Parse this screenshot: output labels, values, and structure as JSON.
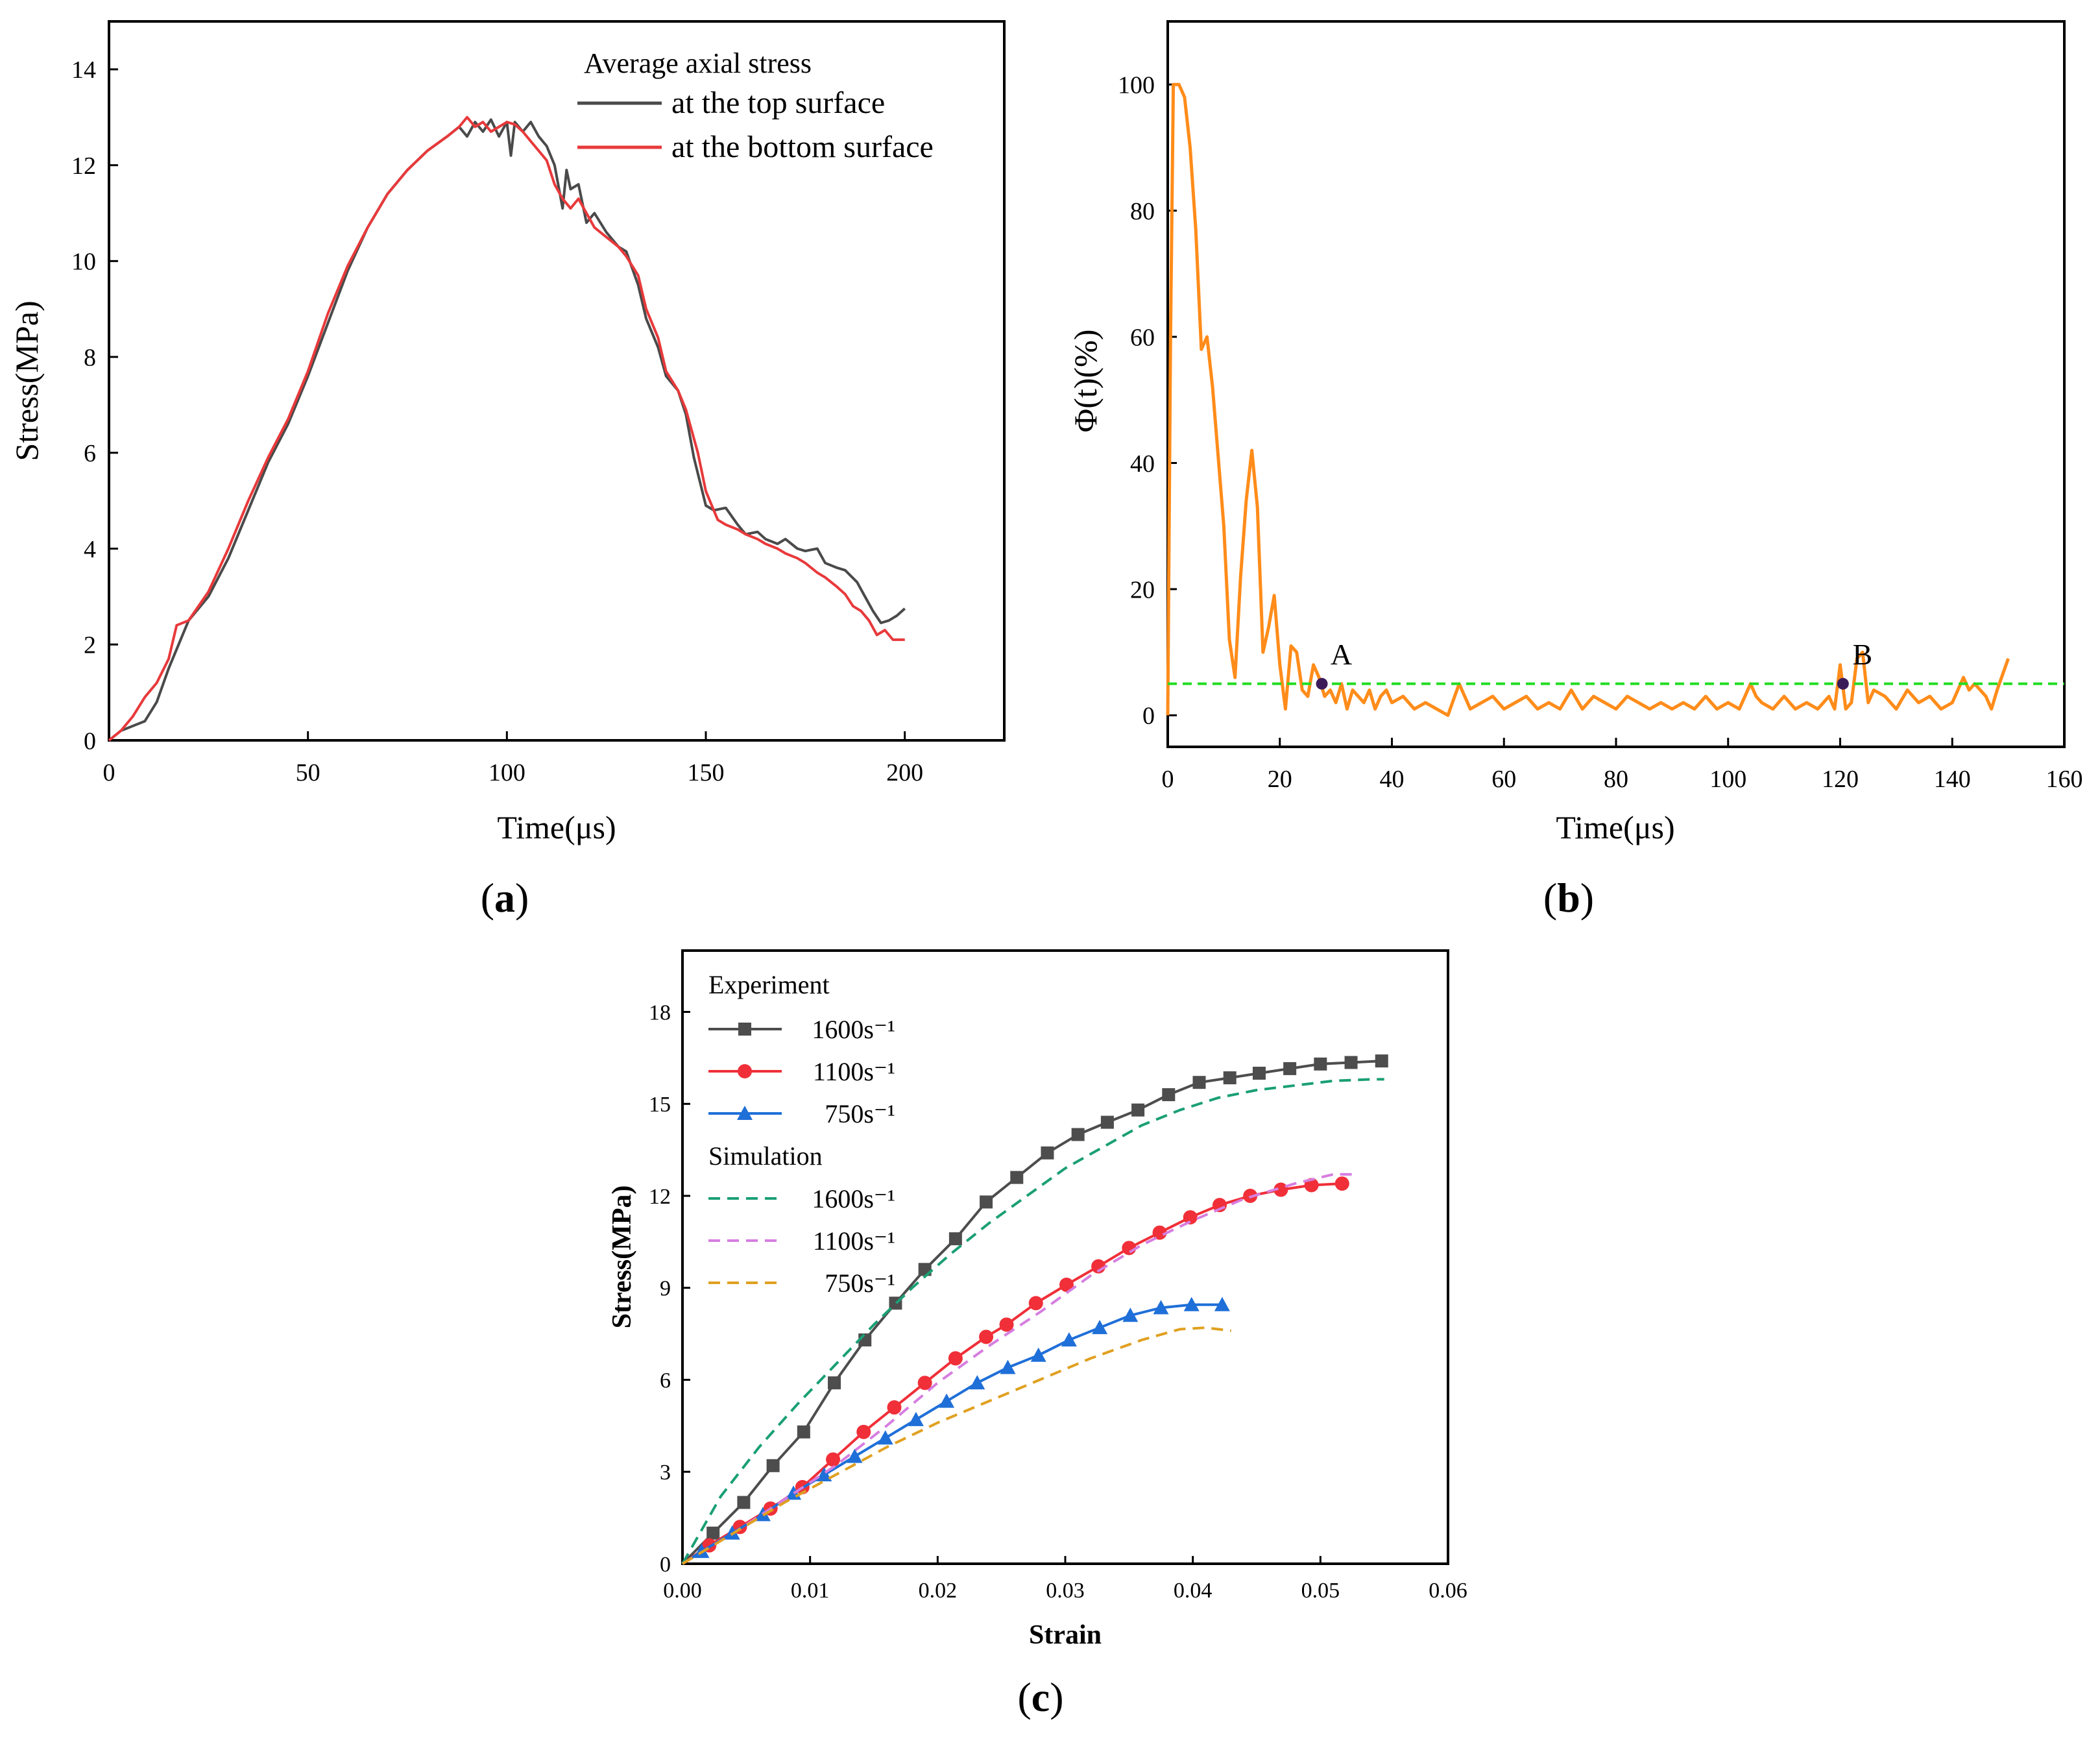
{
  "chart_data": [
    {
      "panel": "(a)",
      "panel_letter": "a",
      "type": "line",
      "title": "",
      "xlabel": "Time(μs)",
      "ylabel": "Stress(MPa)",
      "xlim": [
        0,
        225
      ],
      "ylim": [
        0,
        15
      ],
      "xticks": [
        0,
        50,
        100,
        150,
        200
      ],
      "yticks": [
        0,
        2,
        4,
        6,
        8,
        10,
        12,
        14
      ],
      "legend": {
        "title": "Average axial stress",
        "position": "top-right"
      },
      "series": [
        {
          "name": "at the top surface",
          "color": "#4a4a4a",
          "x": [
            0,
            3,
            6,
            9,
            12,
            15,
            20,
            25,
            30,
            35,
            40,
            45,
            50,
            55,
            60,
            65,
            70,
            75,
            80,
            85,
            88,
            90,
            92,
            94,
            96,
            98,
            100,
            101,
            102,
            104,
            106,
            108,
            110,
            112,
            114,
            115,
            116,
            118,
            120,
            122,
            125,
            128,
            130,
            133,
            135,
            138,
            140,
            143,
            145,
            147,
            150,
            152,
            155,
            158,
            160,
            163,
            165,
            168,
            170,
            173,
            175,
            178,
            180,
            183,
            185,
            188,
            190,
            192,
            194,
            196,
            198,
            200
          ],
          "y": [
            0,
            0.2,
            0.3,
            0.4,
            0.8,
            1.5,
            2.5,
            3.0,
            3.8,
            4.8,
            5.8,
            6.6,
            7.6,
            8.7,
            9.8,
            10.7,
            11.4,
            11.9,
            12.3,
            12.6,
            12.8,
            12.6,
            12.9,
            12.7,
            12.95,
            12.6,
            12.9,
            12.2,
            12.9,
            12.7,
            12.9,
            12.6,
            12.4,
            12.0,
            11.1,
            11.9,
            11.5,
            11.6,
            10.8,
            11.0,
            10.6,
            10.3,
            10.2,
            9.5,
            8.8,
            8.2,
            7.6,
            7.3,
            6.8,
            5.9,
            4.9,
            4.8,
            4.85,
            4.5,
            4.3,
            4.35,
            4.2,
            4.1,
            4.2,
            4.0,
            3.95,
            4.0,
            3.7,
            3.6,
            3.55,
            3.3,
            3.0,
            2.7,
            2.45,
            2.5,
            2.6,
            2.75
          ]
        },
        {
          "name": "at the bottom surface",
          "color": "#e8393b",
          "x": [
            0,
            3,
            6,
            9,
            12,
            15,
            17,
            20,
            25,
            30,
            35,
            40,
            45,
            50,
            55,
            60,
            65,
            70,
            75,
            80,
            85,
            88,
            90,
            92,
            94,
            96,
            98,
            100,
            102,
            104,
            106,
            108,
            110,
            112,
            114,
            116,
            118,
            120,
            122,
            125,
            128,
            130,
            133,
            135,
            138,
            140,
            143,
            145,
            148,
            150,
            153,
            155,
            158,
            160,
            163,
            165,
            168,
            170,
            173,
            175,
            178,
            180,
            183,
            185,
            187,
            189,
            191,
            193,
            195,
            197,
            200
          ],
          "y": [
            0,
            0.2,
            0.5,
            0.9,
            1.2,
            1.7,
            2.4,
            2.5,
            3.1,
            4.0,
            5.0,
            5.9,
            6.7,
            7.7,
            8.9,
            9.9,
            10.7,
            11.4,
            11.9,
            12.3,
            12.6,
            12.8,
            13.0,
            12.8,
            12.9,
            12.7,
            12.8,
            12.9,
            12.85,
            12.7,
            12.5,
            12.3,
            12.1,
            11.6,
            11.3,
            11.1,
            11.3,
            11.0,
            10.7,
            10.5,
            10.3,
            10.1,
            9.7,
            9.0,
            8.4,
            7.7,
            7.3,
            6.9,
            6.0,
            5.2,
            4.6,
            4.5,
            4.4,
            4.3,
            4.2,
            4.1,
            4.0,
            3.9,
            3.8,
            3.7,
            3.5,
            3.4,
            3.2,
            3.05,
            2.8,
            2.7,
            2.5,
            2.2,
            2.3,
            2.1,
            2.1
          ]
        }
      ]
    },
    {
      "panel": "(b)",
      "panel_letter": "b",
      "type": "line",
      "title": "",
      "xlabel": "Time(μs)",
      "ylabel": "Φ(t)(%)",
      "xlim": [
        0,
        160
      ],
      "ylim": [
        -5,
        110
      ],
      "xticks": [
        0,
        20,
        40,
        60,
        80,
        100,
        120,
        140,
        160
      ],
      "yticks": [
        0,
        20,
        40,
        60,
        80,
        100
      ],
      "threshold": {
        "value": 5,
        "color": "#22dd22",
        "style": "dashed"
      },
      "points": [
        {
          "label": "A",
          "x": 27.5,
          "y": 5
        },
        {
          "label": "B",
          "x": 120.5,
          "y": 5
        }
      ],
      "series": [
        {
          "name": "Φ(t)",
          "color": "#ff8c1a",
          "x": [
            0,
            0.5,
            1,
            2,
            3,
            4,
            5,
            6,
            7,
            8,
            10,
            11,
            12,
            13,
            14,
            15,
            16,
            17,
            18,
            19,
            20,
            21,
            22,
            23,
            24,
            25,
            26,
            27,
            28,
            29,
            30,
            31,
            32,
            33,
            34,
            35,
            36,
            37,
            38,
            39,
            40,
            42,
            44,
            46,
            48,
            50,
            52,
            54,
            56,
            58,
            60,
            62,
            64,
            66,
            68,
            70,
            72,
            74,
            76,
            78,
            80,
            82,
            84,
            86,
            88,
            90,
            92,
            94,
            96,
            98,
            100,
            102,
            104,
            105,
            106,
            108,
            110,
            112,
            114,
            116,
            118,
            119,
            120,
            121,
            122,
            123,
            124,
            125,
            126,
            128,
            130,
            132,
            134,
            136,
            138,
            140,
            142,
            143,
            144,
            146,
            147,
            148,
            150
          ],
          "y": [
            0,
            60,
            100,
            100,
            98,
            90,
            77,
            58,
            60,
            52,
            30,
            12,
            6,
            22,
            34,
            42,
            33,
            10,
            14,
            19,
            8,
            1,
            11,
            10,
            4,
            3,
            8,
            6,
            3,
            4,
            2,
            5,
            1,
            4,
            3,
            2,
            4,
            1,
            3,
            4,
            2,
            3,
            1,
            2,
            1,
            0,
            5,
            1,
            2,
            3,
            1,
            2,
            3,
            1,
            2,
            1,
            4,
            1,
            3,
            2,
            1,
            3,
            2,
            1,
            2,
            1,
            2,
            1,
            3,
            1,
            2,
            1,
            5,
            3,
            2,
            1,
            3,
            1,
            2,
            1,
            3,
            1,
            8,
            1,
            2,
            9,
            10,
            2,
            4,
            3,
            1,
            4,
            2,
            3,
            1,
            2,
            6,
            4,
            5,
            3,
            1,
            4,
            9
          ]
        }
      ]
    },
    {
      "panel": "(c)",
      "panel_letter": "c",
      "type": "line",
      "title": "",
      "xlabel": "Strain",
      "ylabel": "Stress(MPa)",
      "xlim": [
        0,
        0.06
      ],
      "ylim": [
        0,
        20
      ],
      "xticks": [
        0.0,
        0.01,
        0.02,
        0.03,
        0.04,
        0.05,
        0.06
      ],
      "xtick_labels": [
        "0.00",
        "0.01",
        "0.02",
        "0.03",
        "0.04",
        "0.05",
        "0.06"
      ],
      "yticks": [
        0,
        3,
        6,
        9,
        12,
        15,
        18
      ],
      "legend": {
        "position": "top-left",
        "group_titles": [
          "Experiment",
          "Simulation"
        ]
      },
      "series": [
        {
          "name": "1600s⁻¹",
          "group": "Experiment",
          "color": "#4d4d4d",
          "marker": "square",
          "x": [
            0.0,
            0.0024,
            0.0048,
            0.0071,
            0.0095,
            0.0119,
            0.0143,
            0.0167,
            0.019,
            0.0214,
            0.0238,
            0.0262,
            0.0286,
            0.031,
            0.0333,
            0.0357,
            0.0381,
            0.0405,
            0.0429,
            0.0452,
            0.0476,
            0.05,
            0.0524,
            0.0548
          ],
          "y": [
            0.0,
            1.0,
            2.0,
            3.2,
            4.3,
            5.9,
            7.3,
            8.5,
            9.6,
            10.6,
            11.8,
            12.6,
            13.4,
            14.0,
            14.4,
            14.8,
            15.3,
            15.7,
            15.85,
            16.0,
            16.15,
            16.3,
            16.35,
            16.4
          ]
        },
        {
          "name": "1100s⁻¹",
          "group": "Experiment",
          "color": "#f02f38",
          "marker": "circle",
          "x": [
            0.0,
            0.0021,
            0.0045,
            0.0069,
            0.0094,
            0.0118,
            0.0142,
            0.0166,
            0.019,
            0.0214,
            0.0238,
            0.0254,
            0.0277,
            0.0301,
            0.0326,
            0.035,
            0.0374,
            0.0398,
            0.0421,
            0.0445,
            0.0469,
            0.0493,
            0.0517
          ],
          "y": [
            0.0,
            0.6,
            1.2,
            1.8,
            2.5,
            3.4,
            4.3,
            5.1,
            5.9,
            6.7,
            7.4,
            7.8,
            8.5,
            9.1,
            9.7,
            10.3,
            10.8,
            11.3,
            11.7,
            12.0,
            12.2,
            12.35,
            12.4
          ]
        },
        {
          "name": "750s⁻¹",
          "group": "Experiment",
          "color": "#1f6fd8",
          "marker": "triangle",
          "x": [
            0.0,
            0.0015,
            0.0039,
            0.0063,
            0.0087,
            0.0111,
            0.0135,
            0.0159,
            0.0183,
            0.0207,
            0.0231,
            0.0255,
            0.0279,
            0.0303,
            0.0327,
            0.0351,
            0.0375,
            0.0399,
            0.0423
          ],
          "y": [
            0.0,
            0.4,
            1.0,
            1.6,
            2.3,
            2.9,
            3.5,
            4.1,
            4.7,
            5.3,
            5.9,
            6.4,
            6.8,
            7.3,
            7.7,
            8.1,
            8.35,
            8.45,
            8.45
          ]
        },
        {
          "name": "1600s⁻¹",
          "group": "Simulation",
          "color": "#1a9f75",
          "marker": "none",
          "x": [
            0.0,
            0.003,
            0.006,
            0.009,
            0.012,
            0.015,
            0.018,
            0.021,
            0.024,
            0.027,
            0.03,
            0.033,
            0.036,
            0.039,
            0.042,
            0.045,
            0.048,
            0.051,
            0.054,
            0.055
          ],
          "y": [
            0.0,
            2.2,
            3.8,
            5.2,
            6.5,
            7.8,
            9.0,
            10.1,
            11.1,
            12.0,
            12.9,
            13.6,
            14.3,
            14.8,
            15.2,
            15.45,
            15.6,
            15.75,
            15.8,
            15.8
          ]
        },
        {
          "name": "1100s⁻¹",
          "group": "Simulation",
          "color": "#d67ee0",
          "marker": "none",
          "x": [
            0.0,
            0.004,
            0.008,
            0.012,
            0.016,
            0.02,
            0.024,
            0.028,
            0.032,
            0.036,
            0.04,
            0.044,
            0.048,
            0.051,
            0.053
          ],
          "y": [
            0.0,
            1.0,
            2.1,
            3.2,
            4.5,
            5.9,
            7.1,
            8.2,
            9.4,
            10.4,
            11.2,
            11.9,
            12.4,
            12.7,
            12.7
          ]
        },
        {
          "name": "750s⁻¹",
          "group": "Simulation",
          "color": "#e0a020",
          "marker": "none",
          "x": [
            0.0,
            0.004,
            0.008,
            0.012,
            0.016,
            0.02,
            0.024,
            0.028,
            0.032,
            0.036,
            0.039,
            0.041,
            0.043
          ],
          "y": [
            0.0,
            1.0,
            2.0,
            2.9,
            3.8,
            4.6,
            5.3,
            6.0,
            6.7,
            7.3,
            7.65,
            7.7,
            7.6
          ]
        }
      ]
    }
  ]
}
